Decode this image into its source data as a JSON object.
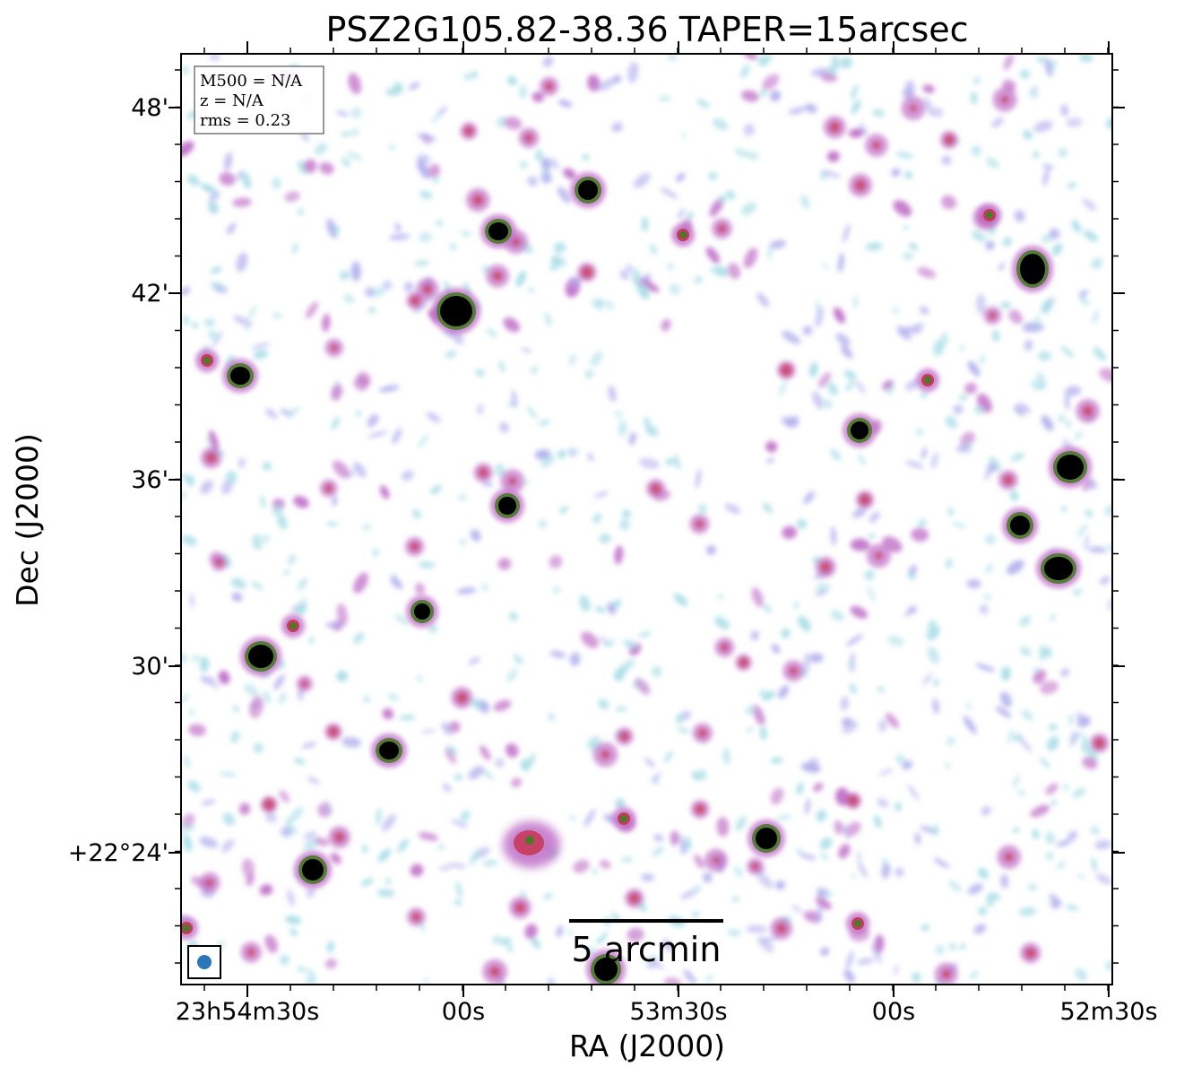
{
  "title": "PSZ2G105.82-38.36 TAPER=15arcsec",
  "xlabel": "RA (J2000)",
  "ylabel": "Dec (J2000)",
  "x_ticks": [
    "23h54m30s",
    "00s",
    "53m30s",
    "00s",
    "52m30s"
  ],
  "y_ticks": [
    "48'",
    "42'",
    "36'",
    "30'",
    "+22°24'"
  ],
  "info_box": {
    "mass": "M500 = N/A",
    "redshift": "z = N/A",
    "rms": "rms = 0.23"
  },
  "scale_bar": {
    "label": "5 arcmin"
  },
  "colors": {
    "faint": "#a8dde6",
    "low": "#b3b0ee",
    "mid": "#c070c8",
    "high": "#c83a5a",
    "green": "#4a7a28",
    "core": "#000000",
    "beam": "#2a78b8"
  }
}
